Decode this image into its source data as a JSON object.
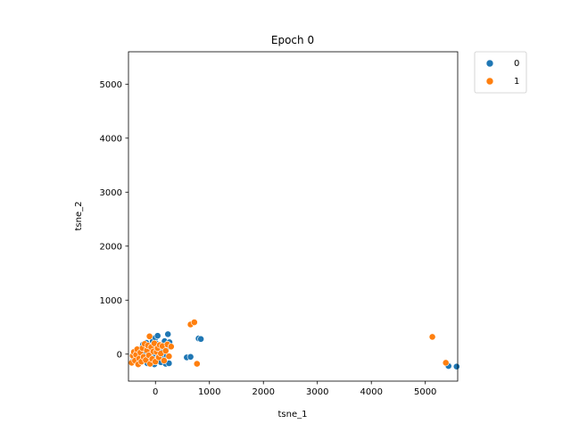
{
  "chart_data": {
    "type": "scatter",
    "title": "Epoch 0",
    "xlabel": "tsne_1",
    "ylabel": "tsne_2",
    "xlim": [
      -500,
      5600
    ],
    "ylim": [
      -500,
      5600
    ],
    "xticks": [
      0,
      1000,
      2000,
      3000,
      4000,
      5000
    ],
    "yticks": [
      0,
      1000,
      2000,
      3000,
      4000,
      5000
    ],
    "xtick_labels": [
      "0",
      "1000",
      "2000",
      "3000",
      "4000",
      "5000"
    ],
    "ytick_labels": [
      "0",
      "1000",
      "2000",
      "3000",
      "4000",
      "5000"
    ],
    "grid": false,
    "legend_placement": "outside-upper-right",
    "series": [
      {
        "name": "0",
        "color": "#1f77b4",
        "points": [
          [
            -410,
            -110
          ],
          [
            -380,
            -70
          ],
          [
            -350,
            20
          ],
          [
            -320,
            -150
          ],
          [
            -300,
            60
          ],
          [
            -270,
            -40
          ],
          [
            -250,
            120
          ],
          [
            -230,
            180
          ],
          [
            -200,
            -90
          ],
          [
            -190,
            30
          ],
          [
            -170,
            210
          ],
          [
            -150,
            -170
          ],
          [
            -140,
            80
          ],
          [
            -120,
            -60
          ],
          [
            -100,
            150
          ],
          [
            -90,
            10
          ],
          [
            -70,
            -130
          ],
          [
            -50,
            240
          ],
          [
            -30,
            60
          ],
          [
            -10,
            -30
          ],
          [
            0,
            300
          ],
          [
            10,
            200
          ],
          [
            20,
            -100
          ],
          [
            30,
            120
          ],
          [
            40,
            340
          ],
          [
            60,
            -50
          ],
          [
            80,
            90
          ],
          [
            100,
            -150
          ],
          [
            120,
            30
          ],
          [
            140,
            180
          ],
          [
            150,
            -80
          ],
          [
            170,
            240
          ],
          [
            190,
            -180
          ],
          [
            200,
            100
          ],
          [
            210,
            -20
          ],
          [
            230,
            370
          ],
          [
            250,
            -170
          ],
          [
            260,
            220
          ],
          [
            -60,
            90
          ],
          [
            -20,
            -190
          ],
          [
            580,
            -60
          ],
          [
            650,
            -50
          ],
          [
            800,
            290
          ],
          [
            840,
            280
          ],
          [
            5430,
            -220
          ],
          [
            5580,
            -230
          ]
        ]
      },
      {
        "name": "1",
        "color": "#ff7f0e",
        "points": [
          [
            -440,
            -160
          ],
          [
            -420,
            -30
          ],
          [
            -400,
            40
          ],
          [
            -380,
            -120
          ],
          [
            -360,
            -10
          ],
          [
            -340,
            90
          ],
          [
            -320,
            -190
          ],
          [
            -300,
            -80
          ],
          [
            -280,
            30
          ],
          [
            -260,
            -140
          ],
          [
            -240,
            110
          ],
          [
            -220,
            -50
          ],
          [
            -200,
            190
          ],
          [
            -180,
            -110
          ],
          [
            -160,
            70
          ],
          [
            -140,
            160
          ],
          [
            -120,
            -20
          ],
          [
            -100,
            -180
          ],
          [
            -80,
            130
          ],
          [
            -60,
            -90
          ],
          [
            -40,
            50
          ],
          [
            -20,
            200
          ],
          [
            0,
            -140
          ],
          [
            20,
            40
          ],
          [
            40,
            110
          ],
          [
            60,
            -60
          ],
          [
            80,
            170
          ],
          [
            100,
            10
          ],
          [
            130,
            150
          ],
          [
            160,
            -120
          ],
          [
            190,
            60
          ],
          [
            220,
            180
          ],
          [
            250,
            -40
          ],
          [
            290,
            140
          ],
          [
            -110,
            330
          ],
          [
            650,
            550
          ],
          [
            720,
            590
          ],
          [
            770,
            -180
          ],
          [
            5130,
            320
          ],
          [
            5380,
            -160
          ]
        ]
      }
    ]
  }
}
